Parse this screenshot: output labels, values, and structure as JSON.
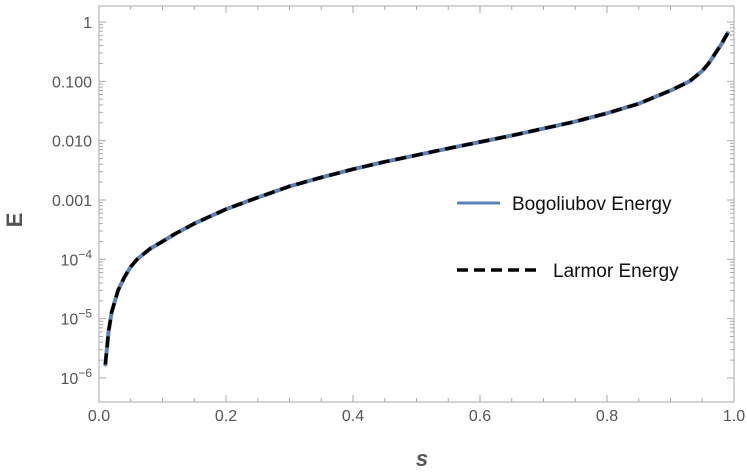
{
  "chart_data": {
    "type": "line",
    "title": "",
    "xlabel": "s",
    "ylabel": "E",
    "xlim": [
      0.0,
      1.0
    ],
    "ylim": [
      1e-06,
      1.0
    ],
    "yscale": "log",
    "grid": false,
    "legend_position": "right",
    "x_ticks": [
      "0.0",
      "0.2",
      "0.4",
      "0.6",
      "0.8",
      "1.0"
    ],
    "y_ticks": [
      {
        "base": "10",
        "exp": "−6",
        "value": 1e-06
      },
      {
        "base": "10",
        "exp": "−5",
        "value": 1e-05
      },
      {
        "base": "10",
        "exp": "−4",
        "value": 0.0001
      },
      {
        "text": "0.001",
        "value": 0.001
      },
      {
        "text": "0.010",
        "value": 0.01
      },
      {
        "text": "0.100",
        "value": 0.1
      },
      {
        "text": "1",
        "value": 1
      }
    ],
    "colors": {
      "frame": "#aaaaaa",
      "tick_text": "#555555",
      "bogoliubov": "#5e81b5",
      "larmor": "#000000"
    },
    "x": [
      0.01,
      0.015,
      0.02,
      0.03,
      0.04,
      0.05,
      0.06,
      0.08,
      0.1,
      0.12,
      0.15,
      0.2,
      0.25,
      0.3,
      0.35,
      0.4,
      0.45,
      0.5,
      0.55,
      0.6,
      0.65,
      0.7,
      0.75,
      0.8,
      0.85,
      0.9,
      0.93,
      0.95,
      0.96,
      0.97,
      0.98,
      0.99
    ],
    "series": [
      {
        "name": "Bogoliubov Energy",
        "style": "solid",
        "values": [
          1.7e-06,
          6e-06,
          1.3e-05,
          3e-05,
          5e-05,
          7.5e-05,
          0.0001,
          0.00015,
          0.0002,
          0.00027,
          0.0004,
          0.0007,
          0.0011,
          0.0017,
          0.0024,
          0.0033,
          0.0044,
          0.0057,
          0.0074,
          0.0095,
          0.0122,
          0.016,
          0.021,
          0.029,
          0.042,
          0.07,
          0.1,
          0.15,
          0.2,
          0.29,
          0.42,
          0.65
        ]
      },
      {
        "name": "Larmor Energy",
        "style": "dashed",
        "values": [
          1.7e-06,
          6e-06,
          1.3e-05,
          3e-05,
          5e-05,
          7.5e-05,
          0.0001,
          0.00015,
          0.0002,
          0.00027,
          0.0004,
          0.0007,
          0.0011,
          0.0017,
          0.0024,
          0.0033,
          0.0044,
          0.0057,
          0.0074,
          0.0095,
          0.0122,
          0.016,
          0.021,
          0.029,
          0.042,
          0.07,
          0.1,
          0.15,
          0.2,
          0.29,
          0.42,
          0.65
        ]
      }
    ]
  }
}
